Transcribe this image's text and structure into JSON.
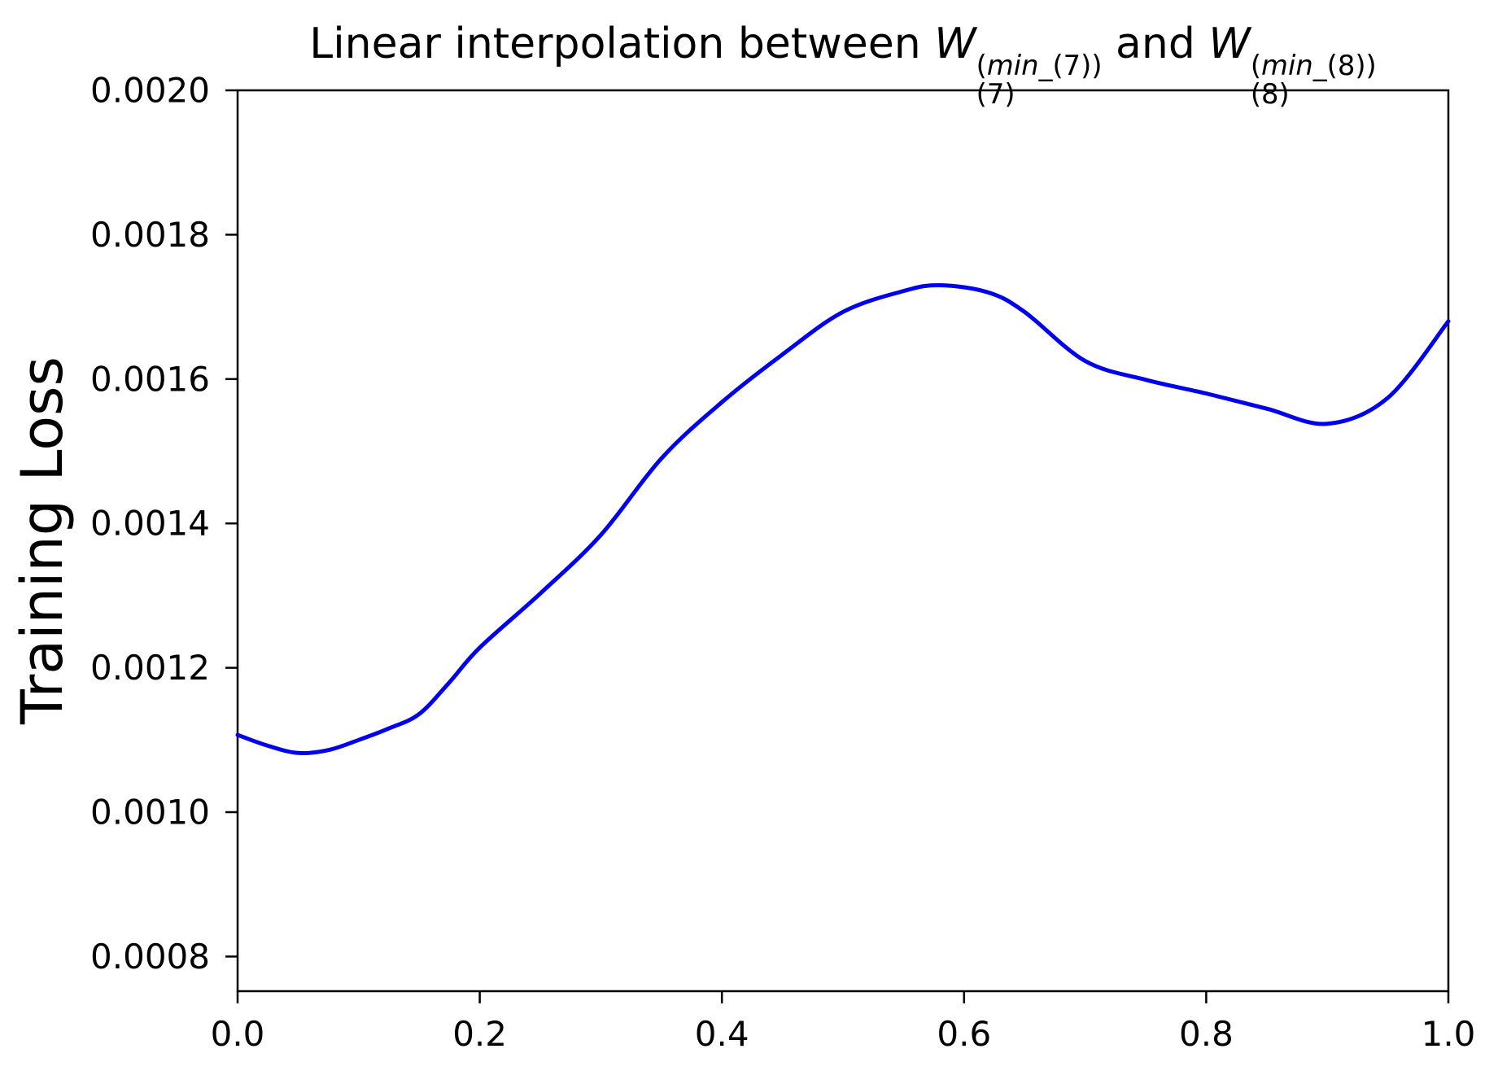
{
  "title": {
    "prefix": "Linear interpolation between ",
    "connector": " and ",
    "terms": [
      {
        "base": "W",
        "sup_open": "(",
        "sup_var": "min",
        "sup_rest": "_(7))",
        "sub": "(7)"
      },
      {
        "base": "W",
        "sup_open": "(",
        "sup_var": "min",
        "sup_rest": "_(8))",
        "sub": "(8)"
      }
    ]
  },
  "chart_data": {
    "type": "line",
    "title": "Linear interpolation between W_(7)^(min_(7)) and W_(8)^(min_(8))",
    "xlabel": "",
    "ylabel": "Training Loss",
    "xlim": [
      0.0,
      1.0
    ],
    "ylim": [
      0.000752,
      0.002
    ],
    "grid": false,
    "legend": "none",
    "xticks": [
      0.0,
      0.2,
      0.4,
      0.6,
      0.8,
      1.0
    ],
    "xtick_labels": [
      "0.0",
      "0.2",
      "0.4",
      "0.6",
      "0.8",
      "1.0"
    ],
    "yticks": [
      0.0008,
      0.001,
      0.0012,
      0.0014,
      0.0016,
      0.0018,
      0.002
    ],
    "ytick_labels": [
      "0.0008",
      "0.0010",
      "0.0012",
      "0.0014",
      "0.0016",
      "0.0018",
      "0.0020"
    ],
    "line_color": "#0000ee",
    "axis_color": "#000000",
    "series": [
      {
        "name": "training-loss",
        "x": [
          0.0,
          0.025,
          0.05,
          0.075,
          0.1,
          0.125,
          0.15,
          0.175,
          0.2,
          0.25,
          0.3,
          0.35,
          0.4,
          0.45,
          0.5,
          0.55,
          0.58,
          0.62,
          0.65,
          0.7,
          0.75,
          0.8,
          0.85,
          0.9,
          0.95,
          1.0
        ],
        "y": [
          0.001107,
          0.001092,
          0.001082,
          0.001086,
          0.0011,
          0.001116,
          0.001136,
          0.00118,
          0.001228,
          0.001303,
          0.001384,
          0.00149,
          0.001568,
          0.001634,
          0.001693,
          0.001722,
          0.00173,
          0.00172,
          0.001693,
          0.001625,
          0.001599,
          0.00158,
          0.001559,
          0.001538,
          0.001574,
          0.00168
        ]
      }
    ]
  }
}
